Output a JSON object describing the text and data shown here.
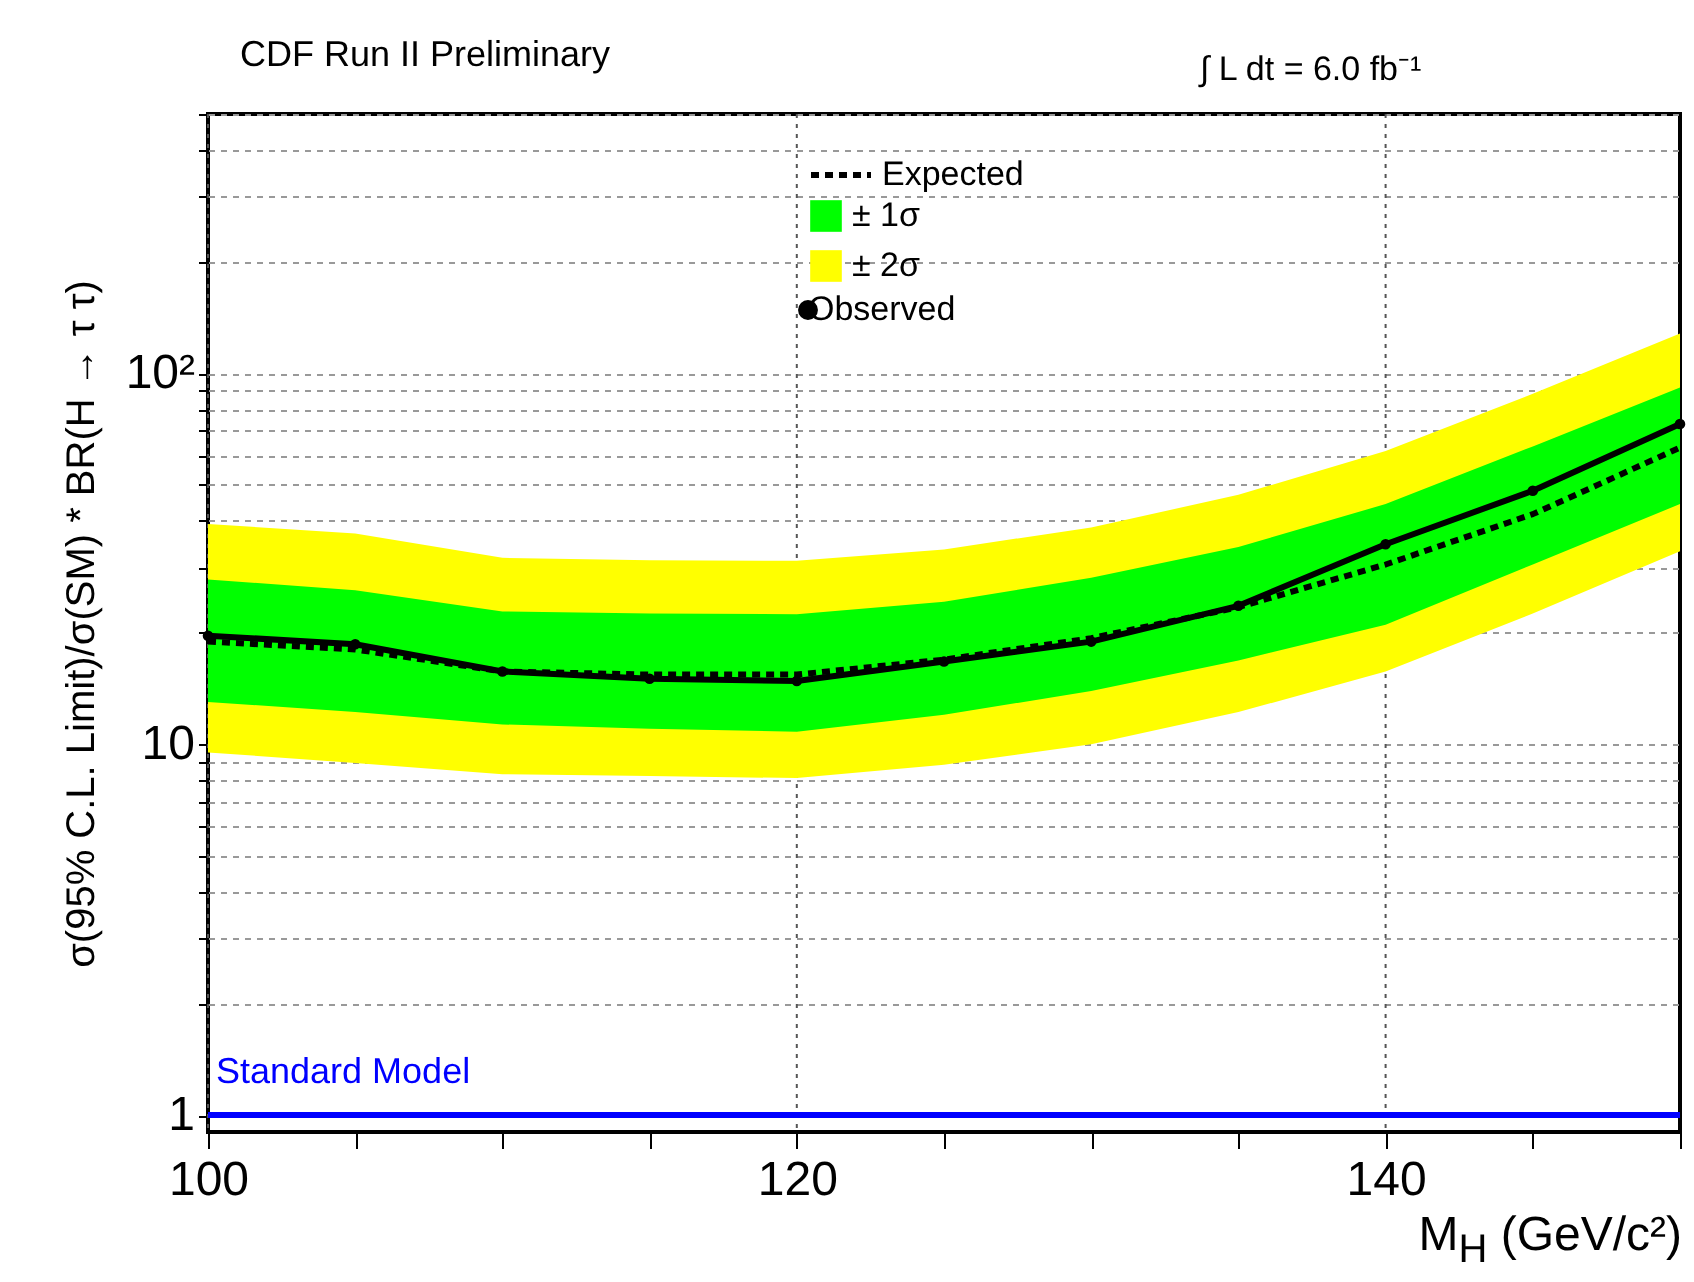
{
  "chart_data": {
    "type": "line",
    "title": "CDF Run II Preliminary",
    "annotations": [
      "∫ L dt = 6.0 fb⁻¹"
    ],
    "xlabel": "M$_{H}$ (GeV/c²)",
    "ylabel": "σ(95% C.L. Limit)/σ(SM) * BR(H → τ τ)",
    "x": [
      100,
      105,
      110,
      115,
      120,
      125,
      130,
      135,
      140,
      145,
      150
    ],
    "series": [
      {
        "name": "Expected",
        "line_style": "dashed",
        "marker": "none",
        "color": "#000000",
        "values": [
          18.9,
          18.0,
          15.7,
          15.4,
          15.4,
          16.9,
          19.3,
          23.4,
          30.5,
          41.7,
          63
        ]
      },
      {
        "name": "± 1σ",
        "type": "area",
        "color": "#00ff00",
        "values": [
          null,
          null,
          null,
          null,
          null,
          null,
          null,
          null,
          null,
          null,
          null
        ],
        "lower": [
          13.0,
          12.2,
          11.3,
          11.0,
          10.8,
          12.0,
          13.9,
          16.8,
          21.0,
          30.5,
          44.4
        ],
        "upper": [
          27.8,
          26.0,
          22.8,
          22.5,
          22.4,
          24.2,
          28.1,
          34.0,
          44.4,
          63.5,
          91.6
        ]
      },
      {
        "name": "± 2σ",
        "type": "area",
        "color": "#ffff00",
        "values": [
          null,
          null,
          null,
          null,
          null,
          null,
          null,
          null,
          null,
          null,
          null
        ],
        "lower": [
          9.5,
          8.9,
          8.3,
          8.2,
          8.1,
          8.8,
          10.0,
          12.2,
          15.7,
          22.5,
          33.1
        ],
        "upper": [
          39.2,
          37.0,
          31.8,
          31.3,
          31.2,
          33.5,
          38.4,
          47.0,
          61.7,
          88.0,
          128
        ]
      },
      {
        "name": "Observed",
        "line_style": "solid",
        "marker": "circle",
        "color": "#000000",
        "values": [
          19.6,
          18.6,
          15.7,
          15.0,
          14.8,
          16.7,
          18.9,
          23.6,
          34.6,
          48.2,
          73
        ]
      }
    ],
    "xlim": [
      100,
      150
    ],
    "xticks": [
      100,
      {
        "value": 105,
        "label": null
      },
      {
        "value": 110,
        "label": null
      },
      {
        "value": 115,
        "label": null
      },
      120,
      {
        "value": 125,
        "label": null
      },
      {
        "value": 130,
        "label": null
      },
      {
        "value": 135,
        "label": null
      },
      140,
      {
        "value": 145,
        "label": null
      },
      {
        "value": 150,
        "label": null
      }
    ],
    "ylim": [
      0.9,
      500
    ],
    "yticks": [
      1,
      {
        "value": 2,
        "label": null
      },
      {
        "value": 3,
        "label": null
      },
      {
        "value": 4,
        "label": null
      },
      {
        "value": 5,
        "label": null
      },
      {
        "value": 6,
        "label": null
      },
      {
        "value": 7,
        "label": null
      },
      {
        "value": 8,
        "label": null
      },
      {
        "value": 9,
        "label": null
      },
      10,
      {
        "value": 20,
        "label": null
      },
      {
        "value": 30,
        "label": null
      },
      {
        "value": 40,
        "label": null
      },
      {
        "value": 50,
        "label": null
      },
      {
        "value": 60,
        "label": null
      },
      {
        "value": 70,
        "label": null
      },
      {
        "value": 80,
        "label": null
      },
      {
        "value": 90,
        "label": null
      },
      {
        "value": 100,
        "label": "10²"
      },
      {
        "value": 200,
        "label": null
      },
      {
        "value": 300,
        "label": null
      },
      {
        "value": 400,
        "label": null
      },
      {
        "value": 500,
        "label": null
      }
    ],
    "log": "y",
    "grid": true,
    "legend": "top",
    "ref_lines": [
      {
        "axis": "y",
        "value": 1,
        "label": "Standard Model",
        "color": "#0000ff"
      }
    ]
  }
}
